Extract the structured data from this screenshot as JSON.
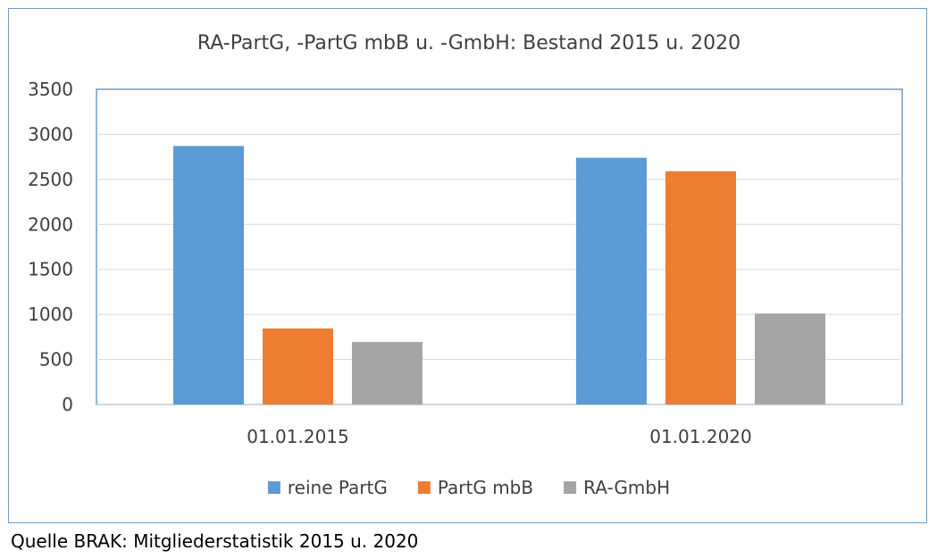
{
  "chart_data": {
    "type": "bar",
    "title": "RA-PartG, -PartG mbB u. -GmbH: Bestand 2015 u. 2020",
    "xlabel": "",
    "ylabel": "",
    "categories": [
      "01.01.2015",
      "01.01.2020"
    ],
    "series": [
      {
        "name": "reine PartG",
        "values": [
          2870,
          2740
        ],
        "color": "#5b9bd5"
      },
      {
        "name": "PartG mbB",
        "values": [
          845,
          2590
        ],
        "color": "#ed7d31"
      },
      {
        "name": "RA-GmbH",
        "values": [
          695,
          1010
        ],
        "color": "#a5a5a5"
      }
    ],
    "ylim": [
      0,
      3500
    ],
    "yticks": [
      "0",
      "500",
      "1000",
      "1500",
      "2000",
      "2500",
      "3000",
      "3500"
    ],
    "grid": true,
    "legend_position": "bottom"
  },
  "source_note": "Quelle BRAK: Mitgliederstatistik 2015 u. 2020"
}
